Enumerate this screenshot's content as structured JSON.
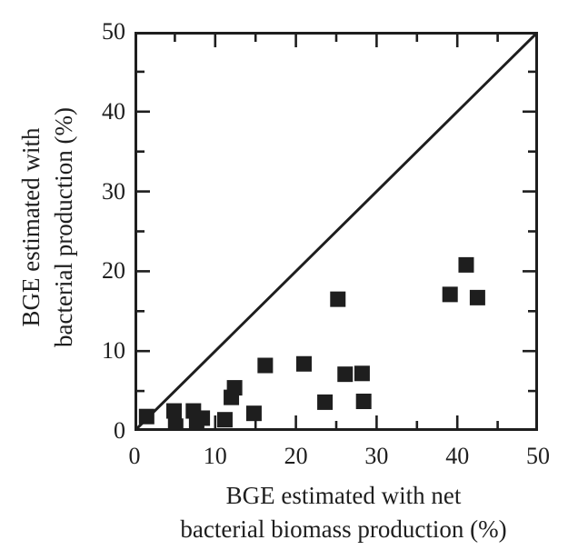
{
  "figure": {
    "background": "#ffffff",
    "ink_color": "#1e1e1e"
  },
  "chart_data": {
    "type": "scatter",
    "title": "",
    "xlabel_lines": [
      "BGE estimated with net",
      "bacterial biomass production (%)"
    ],
    "ylabel_lines": [
      "BGE estimated with",
      "bacterial production (%)"
    ],
    "xlim": [
      0,
      50
    ],
    "ylim": [
      0,
      50
    ],
    "x_major_ticks": [
      0,
      10,
      20,
      30,
      40,
      50
    ],
    "y_major_ticks": [
      0,
      10,
      20,
      30,
      40,
      50
    ],
    "minor_tick_step": 5,
    "grid": false,
    "legend": "none",
    "reference_line": {
      "name": "1:1 line",
      "from": [
        0,
        0
      ],
      "to": [
        50,
        50
      ]
    },
    "marker": "filled-square",
    "series": [
      {
        "name": "BGE estimates",
        "points": [
          [
            1.5,
            1.8
          ],
          [
            4.9,
            2.5
          ],
          [
            5.1,
            0.6
          ],
          [
            7.3,
            2.5
          ],
          [
            7.7,
            0.8
          ],
          [
            8.4,
            1.6
          ],
          [
            11.2,
            1.4
          ],
          [
            12.0,
            4.2
          ],
          [
            12.4,
            5.4
          ],
          [
            14.8,
            2.2
          ],
          [
            16.2,
            8.2
          ],
          [
            21.0,
            8.4
          ],
          [
            23.6,
            3.6
          ],
          [
            25.2,
            16.5
          ],
          [
            26.1,
            7.1
          ],
          [
            28.2,
            7.2
          ],
          [
            28.4,
            3.7
          ],
          [
            39.1,
            17.1
          ],
          [
            41.1,
            20.8
          ],
          [
            42.5,
            16.7
          ]
        ]
      }
    ]
  }
}
